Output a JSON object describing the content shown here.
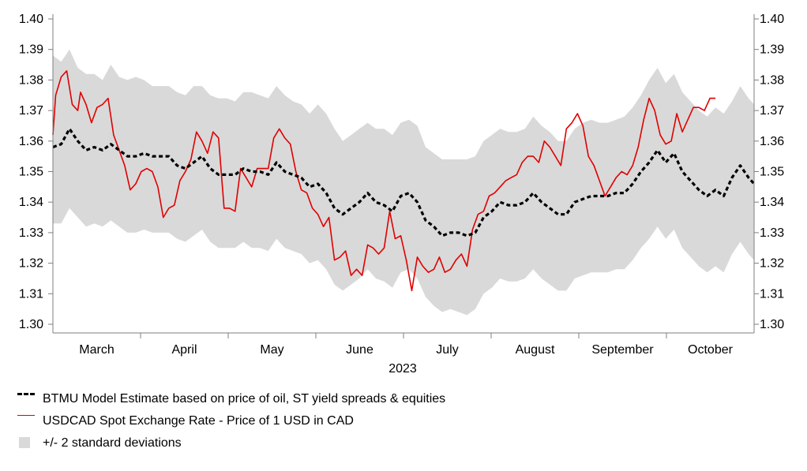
{
  "chart_data": {
    "type": "line",
    "title": "",
    "xlabel": "2023",
    "ylabel": "",
    "ylim": [
      1.3,
      1.4
    ],
    "y_ticks": [
      "1.30",
      "1.31",
      "1.32",
      "1.33",
      "1.34",
      "1.35",
      "1.36",
      "1.37",
      "1.38",
      "1.39",
      "1.40"
    ],
    "x_ticks": [
      "March",
      "April",
      "May",
      "June",
      "July",
      "August",
      "September",
      "October"
    ],
    "year_label": "2023",
    "legend": [
      {
        "key": "model",
        "label": "BTMU Model Estimate based on price of oil, ST yield spreads & equities",
        "style": "dashed",
        "color": "#000000"
      },
      {
        "key": "spot",
        "label": "USDCAD Spot Exchange Rate - Price of 1 USD in CAD",
        "style": "solid",
        "color": "#e00000"
      },
      {
        "key": "band",
        "label": "+/- 2 standard deviations",
        "style": "band",
        "color": "#d9d9d9"
      }
    ],
    "model_points": [
      [
        0,
        1.358
      ],
      [
        3,
        1.359
      ],
      [
        6,
        1.364
      ],
      [
        9,
        1.36
      ],
      [
        12,
        1.357
      ],
      [
        15,
        1.358
      ],
      [
        18,
        1.357
      ],
      [
        21,
        1.359
      ],
      [
        24,
        1.357
      ],
      [
        27,
        1.355
      ],
      [
        30,
        1.355
      ],
      [
        33,
        1.356
      ],
      [
        36,
        1.355
      ],
      [
        39,
        1.355
      ],
      [
        42,
        1.355
      ],
      [
        45,
        1.352
      ],
      [
        48,
        1.351
      ],
      [
        51,
        1.353
      ],
      [
        54,
        1.355
      ],
      [
        57,
        1.351
      ],
      [
        60,
        1.349
      ],
      [
        63,
        1.349
      ],
      [
        66,
        1.349
      ],
      [
        69,
        1.351
      ],
      [
        72,
        1.35
      ],
      [
        75,
        1.35
      ],
      [
        78,
        1.349
      ],
      [
        81,
        1.353
      ],
      [
        84,
        1.35
      ],
      [
        87,
        1.349
      ],
      [
        90,
        1.348
      ],
      [
        93,
        1.345
      ],
      [
        96,
        1.346
      ],
      [
        99,
        1.343
      ],
      [
        102,
        1.338
      ],
      [
        105,
        1.336
      ],
      [
        108,
        1.338
      ],
      [
        111,
        1.34
      ],
      [
        114,
        1.343
      ],
      [
        117,
        1.34
      ],
      [
        120,
        1.339
      ],
      [
        123,
        1.337
      ],
      [
        126,
        1.342
      ],
      [
        129,
        1.343
      ],
      [
        132,
        1.34
      ],
      [
        135,
        1.334
      ],
      [
        138,
        1.332
      ],
      [
        141,
        1.329
      ],
      [
        144,
        1.33
      ],
      [
        147,
        1.33
      ],
      [
        150,
        1.329
      ],
      [
        153,
        1.33
      ],
      [
        156,
        1.335
      ],
      [
        159,
        1.337
      ],
      [
        162,
        1.34
      ],
      [
        165,
        1.339
      ],
      [
        168,
        1.339
      ],
      [
        171,
        1.34
      ],
      [
        174,
        1.343
      ],
      [
        177,
        1.34
      ],
      [
        180,
        1.338
      ],
      [
        183,
        1.336
      ],
      [
        186,
        1.336
      ],
      [
        189,
        1.34
      ],
      [
        192,
        1.341
      ],
      [
        195,
        1.342
      ],
      [
        198,
        1.342
      ],
      [
        201,
        1.342
      ],
      [
        204,
        1.343
      ],
      [
        207,
        1.343
      ],
      [
        210,
        1.346
      ],
      [
        213,
        1.35
      ],
      [
        216,
        1.353
      ],
      [
        219,
        1.357
      ],
      [
        222,
        1.353
      ],
      [
        225,
        1.356
      ],
      [
        228,
        1.35
      ],
      [
        231,
        1.347
      ],
      [
        234,
        1.344
      ],
      [
        237,
        1.342
      ],
      [
        240,
        1.344
      ],
      [
        243,
        1.342
      ],
      [
        246,
        1.348
      ],
      [
        249,
        1.352
      ],
      [
        252,
        1.348
      ],
      [
        254,
        1.346
      ]
    ],
    "spot_points": [
      [
        0,
        1.362
      ],
      [
        1,
        1.375
      ],
      [
        3,
        1.381
      ],
      [
        5,
        1.383
      ],
      [
        7,
        1.372
      ],
      [
        9,
        1.37
      ],
      [
        10,
        1.376
      ],
      [
        12,
        1.372
      ],
      [
        14,
        1.366
      ],
      [
        16,
        1.371
      ],
      [
        18,
        1.372
      ],
      [
        20,
        1.374
      ],
      [
        22,
        1.362
      ],
      [
        24,
        1.357
      ],
      [
        26,
        1.352
      ],
      [
        28,
        1.344
      ],
      [
        30,
        1.346
      ],
      [
        32,
        1.35
      ],
      [
        34,
        1.351
      ],
      [
        36,
        1.35
      ],
      [
        38,
        1.345
      ],
      [
        40,
        1.335
      ],
      [
        42,
        1.338
      ],
      [
        44,
        1.339
      ],
      [
        46,
        1.347
      ],
      [
        48,
        1.35
      ],
      [
        50,
        1.354
      ],
      [
        52,
        1.363
      ],
      [
        54,
        1.36
      ],
      [
        56,
        1.356
      ],
      [
        58,
        1.363
      ],
      [
        60,
        1.361
      ],
      [
        62,
        1.338
      ],
      [
        64,
        1.338
      ],
      [
        66,
        1.337
      ],
      [
        68,
        1.351
      ],
      [
        70,
        1.348
      ],
      [
        72,
        1.345
      ],
      [
        74,
        1.351
      ],
      [
        76,
        1.351
      ],
      [
        78,
        1.351
      ],
      [
        80,
        1.361
      ],
      [
        82,
        1.364
      ],
      [
        84,
        1.361
      ],
      [
        86,
        1.359
      ],
      [
        88,
        1.35
      ],
      [
        90,
        1.344
      ],
      [
        92,
        1.343
      ],
      [
        94,
        1.338
      ],
      [
        96,
        1.336
      ],
      [
        98,
        1.332
      ],
      [
        100,
        1.335
      ],
      [
        102,
        1.321
      ],
      [
        104,
        1.322
      ],
      [
        106,
        1.324
      ],
      [
        108,
        1.316
      ],
      [
        110,
        1.318
      ],
      [
        112,
        1.316
      ],
      [
        114,
        1.326
      ],
      [
        116,
        1.325
      ],
      [
        118,
        1.323
      ],
      [
        120,
        1.325
      ],
      [
        122,
        1.337
      ],
      [
        124,
        1.328
      ],
      [
        126,
        1.329
      ],
      [
        128,
        1.321
      ],
      [
        130,
        1.311
      ],
      [
        132,
        1.322
      ],
      [
        134,
        1.319
      ],
      [
        136,
        1.317
      ],
      [
        138,
        1.318
      ],
      [
        140,
        1.322
      ],
      [
        142,
        1.317
      ],
      [
        144,
        1.318
      ],
      [
        146,
        1.321
      ],
      [
        148,
        1.323
      ],
      [
        150,
        1.319
      ],
      [
        152,
        1.331
      ],
      [
        154,
        1.336
      ],
      [
        156,
        1.337
      ],
      [
        158,
        1.342
      ],
      [
        160,
        1.343
      ],
      [
        162,
        1.345
      ],
      [
        164,
        1.347
      ],
      [
        166,
        1.348
      ],
      [
        168,
        1.349
      ],
      [
        170,
        1.353
      ],
      [
        172,
        1.355
      ],
      [
        174,
        1.355
      ],
      [
        176,
        1.353
      ],
      [
        178,
        1.36
      ],
      [
        180,
        1.358
      ],
      [
        182,
        1.355
      ],
      [
        184,
        1.352
      ],
      [
        186,
        1.364
      ],
      [
        188,
        1.366
      ],
      [
        190,
        1.369
      ],
      [
        192,
        1.365
      ],
      [
        194,
        1.355
      ],
      [
        196,
        1.352
      ],
      [
        198,
        1.347
      ],
      [
        200,
        1.342
      ],
      [
        202,
        1.345
      ],
      [
        204,
        1.348
      ],
      [
        206,
        1.35
      ],
      [
        208,
        1.349
      ],
      [
        210,
        1.352
      ],
      [
        212,
        1.358
      ],
      [
        214,
        1.367
      ],
      [
        216,
        1.374
      ],
      [
        218,
        1.37
      ],
      [
        220,
        1.362
      ],
      [
        222,
        1.359
      ],
      [
        224,
        1.36
      ],
      [
        226,
        1.369
      ],
      [
        228,
        1.363
      ],
      [
        230,
        1.367
      ],
      [
        232,
        1.371
      ],
      [
        234,
        1.371
      ],
      [
        236,
        1.37
      ],
      [
        238,
        1.374
      ],
      [
        240,
        1.374
      ]
    ],
    "band_upper": [
      [
        0,
        1.388
      ],
      [
        3,
        1.386
      ],
      [
        6,
        1.39
      ],
      [
        9,
        1.384
      ],
      [
        12,
        1.382
      ],
      [
        15,
        1.382
      ],
      [
        18,
        1.38
      ],
      [
        21,
        1.385
      ],
      [
        24,
        1.381
      ],
      [
        27,
        1.38
      ],
      [
        30,
        1.381
      ],
      [
        33,
        1.38
      ],
      [
        36,
        1.378
      ],
      [
        39,
        1.378
      ],
      [
        42,
        1.378
      ],
      [
        45,
        1.376
      ],
      [
        48,
        1.375
      ],
      [
        51,
        1.378
      ],
      [
        54,
        1.378
      ],
      [
        57,
        1.375
      ],
      [
        60,
        1.374
      ],
      [
        63,
        1.374
      ],
      [
        66,
        1.373
      ],
      [
        69,
        1.376
      ],
      [
        72,
        1.376
      ],
      [
        75,
        1.375
      ],
      [
        78,
        1.374
      ],
      [
        81,
        1.378
      ],
      [
        84,
        1.375
      ],
      [
        87,
        1.373
      ],
      [
        90,
        1.372
      ],
      [
        93,
        1.369
      ],
      [
        96,
        1.372
      ],
      [
        99,
        1.369
      ],
      [
        102,
        1.364
      ],
      [
        105,
        1.36
      ],
      [
        108,
        1.362
      ],
      [
        111,
        1.364
      ],
      [
        114,
        1.366
      ],
      [
        117,
        1.364
      ],
      [
        120,
        1.364
      ],
      [
        123,
        1.362
      ],
      [
        126,
        1.366
      ],
      [
        129,
        1.367
      ],
      [
        132,
        1.365
      ],
      [
        135,
        1.358
      ],
      [
        138,
        1.356
      ],
      [
        141,
        1.354
      ],
      [
        144,
        1.354
      ],
      [
        147,
        1.354
      ],
      [
        150,
        1.354
      ],
      [
        153,
        1.355
      ],
      [
        156,
        1.36
      ],
      [
        159,
        1.362
      ],
      [
        162,
        1.364
      ],
      [
        165,
        1.363
      ],
      [
        168,
        1.363
      ],
      [
        171,
        1.364
      ],
      [
        174,
        1.368
      ],
      [
        177,
        1.365
      ],
      [
        180,
        1.363
      ],
      [
        183,
        1.36
      ],
      [
        186,
        1.36
      ],
      [
        189,
        1.364
      ],
      [
        192,
        1.366
      ],
      [
        195,
        1.367
      ],
      [
        198,
        1.366
      ],
      [
        201,
        1.366
      ],
      [
        204,
        1.367
      ],
      [
        207,
        1.368
      ],
      [
        210,
        1.371
      ],
      [
        213,
        1.375
      ],
      [
        216,
        1.38
      ],
      [
        219,
        1.384
      ],
      [
        222,
        1.379
      ],
      [
        225,
        1.382
      ],
      [
        228,
        1.376
      ],
      [
        231,
        1.373
      ],
      [
        234,
        1.37
      ],
      [
        237,
        1.368
      ],
      [
        240,
        1.371
      ],
      [
        243,
        1.369
      ],
      [
        246,
        1.373
      ],
      [
        249,
        1.378
      ],
      [
        252,
        1.374
      ],
      [
        254,
        1.372
      ]
    ],
    "band_lower": [
      [
        0,
        1.333
      ],
      [
        3,
        1.333
      ],
      [
        6,
        1.338
      ],
      [
        9,
        1.335
      ],
      [
        12,
        1.332
      ],
      [
        15,
        1.333
      ],
      [
        18,
        1.332
      ],
      [
        21,
        1.334
      ],
      [
        24,
        1.332
      ],
      [
        27,
        1.33
      ],
      [
        30,
        1.33
      ],
      [
        33,
        1.331
      ],
      [
        36,
        1.33
      ],
      [
        39,
        1.33
      ],
      [
        42,
        1.33
      ],
      [
        45,
        1.328
      ],
      [
        48,
        1.327
      ],
      [
        51,
        1.329
      ],
      [
        54,
        1.331
      ],
      [
        57,
        1.327
      ],
      [
        60,
        1.325
      ],
      [
        63,
        1.325
      ],
      [
        66,
        1.325
      ],
      [
        69,
        1.327
      ],
      [
        72,
        1.325
      ],
      [
        75,
        1.325
      ],
      [
        78,
        1.324
      ],
      [
        81,
        1.328
      ],
      [
        84,
        1.325
      ],
      [
        87,
        1.324
      ],
      [
        90,
        1.323
      ],
      [
        93,
        1.32
      ],
      [
        96,
        1.321
      ],
      [
        99,
        1.318
      ],
      [
        102,
        1.313
      ],
      [
        105,
        1.311
      ],
      [
        108,
        1.313
      ],
      [
        111,
        1.315
      ],
      [
        114,
        1.318
      ],
      [
        117,
        1.315
      ],
      [
        120,
        1.314
      ],
      [
        123,
        1.312
      ],
      [
        126,
        1.317
      ],
      [
        129,
        1.318
      ],
      [
        132,
        1.315
      ],
      [
        135,
        1.309
      ],
      [
        138,
        1.306
      ],
      [
        141,
        1.304
      ],
      [
        144,
        1.305
      ],
      [
        147,
        1.304
      ],
      [
        150,
        1.303
      ],
      [
        153,
        1.305
      ],
      [
        156,
        1.31
      ],
      [
        159,
        1.312
      ],
      [
        162,
        1.315
      ],
      [
        165,
        1.314
      ],
      [
        168,
        1.314
      ],
      [
        171,
        1.315
      ],
      [
        174,
        1.318
      ],
      [
        177,
        1.315
      ],
      [
        180,
        1.313
      ],
      [
        183,
        1.311
      ],
      [
        186,
        1.311
      ],
      [
        189,
        1.315
      ],
      [
        192,
        1.316
      ],
      [
        195,
        1.317
      ],
      [
        198,
        1.317
      ],
      [
        201,
        1.317
      ],
      [
        204,
        1.318
      ],
      [
        207,
        1.318
      ],
      [
        210,
        1.321
      ],
      [
        213,
        1.325
      ],
      [
        216,
        1.328
      ],
      [
        219,
        1.332
      ],
      [
        222,
        1.328
      ],
      [
        225,
        1.331
      ],
      [
        228,
        1.325
      ],
      [
        231,
        1.322
      ],
      [
        234,
        1.319
      ],
      [
        237,
        1.317
      ],
      [
        240,
        1.319
      ],
      [
        243,
        1.317
      ],
      [
        246,
        1.323
      ],
      [
        249,
        1.327
      ],
      [
        252,
        1.323
      ],
      [
        254,
        1.321
      ]
    ],
    "x_domain": [
      0,
      254
    ]
  }
}
